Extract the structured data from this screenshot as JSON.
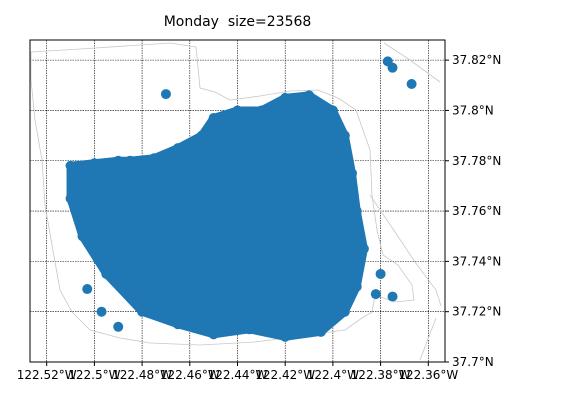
{
  "chart_data": {
    "type": "scatter",
    "title": "Monday  size=23568",
    "xlabel": "",
    "ylabel": "",
    "xlim": [
      -122.527,
      -122.353
    ],
    "ylim": [
      37.7,
      37.828
    ],
    "x_ticks": [
      -122.52,
      -122.5,
      -122.48,
      -122.46,
      -122.44,
      -122.42,
      -122.4,
      -122.38,
      -122.36
    ],
    "x_tick_labels": [
      "122.52°W",
      "122.5°W",
      "122.48°W",
      "122.46°W",
      "122.44°W",
      "122.42°W",
      "122.4°W",
      "122.38°W",
      "122.36°W"
    ],
    "y_ticks": [
      37.7,
      37.72,
      37.74,
      37.76,
      37.78,
      37.8,
      37.82
    ],
    "y_tick_labels": [
      "37.7°N",
      "37.72°N",
      "37.74°N",
      "37.76°N",
      "37.78°N",
      "37.8°N",
      "37.82°N"
    ],
    "y_axis_position": "right",
    "grid": true,
    "series_color": "#1f77b4",
    "series": [
      {
        "values_description_points": [
          [
            -122.485,
            37.78
          ],
          [
            -122.475,
            37.781
          ],
          [
            -122.465,
            37.785
          ],
          [
            -122.455,
            37.79
          ],
          [
            -122.45,
            37.797
          ],
          [
            -122.44,
            37.8
          ],
          [
            -122.43,
            37.8
          ],
          [
            -122.42,
            37.805
          ],
          [
            -122.41,
            37.806
          ],
          [
            -122.4,
            37.8
          ],
          [
            -122.395,
            37.79
          ],
          [
            -122.392,
            37.775
          ],
          [
            -122.39,
            37.76
          ],
          [
            -122.387,
            37.745
          ],
          [
            -122.39,
            37.73
          ],
          [
            -122.395,
            37.72
          ],
          [
            -122.405,
            37.712
          ],
          [
            -122.42,
            37.71
          ],
          [
            -122.435,
            37.713
          ],
          [
            -122.45,
            37.711
          ],
          [
            -122.465,
            37.715
          ],
          [
            -122.48,
            37.72
          ],
          [
            -122.495,
            37.735
          ],
          [
            -122.505,
            37.75
          ],
          [
            -122.51,
            37.765
          ],
          [
            -122.51,
            37.778
          ],
          [
            -122.5,
            37.779
          ],
          [
            -122.49,
            37.78
          ],
          [
            -122.47,
            37.76
          ],
          [
            -122.45,
            37.75
          ],
          [
            -122.43,
            37.76
          ],
          [
            -122.41,
            37.77
          ],
          [
            -122.42,
            37.74
          ],
          [
            -122.44,
            37.73
          ],
          [
            -122.46,
            37.735
          ],
          [
            -122.48,
            37.745
          ],
          [
            -122.47,
            37.8065
          ],
          [
            -122.377,
            37.8195
          ],
          [
            -122.375,
            37.817
          ],
          [
            -122.367,
            37.8105
          ],
          [
            -122.49,
            37.714
          ],
          [
            -122.497,
            37.72
          ],
          [
            -122.503,
            37.729
          ],
          [
            -122.382,
            37.727
          ],
          [
            -122.375,
            37.726
          ],
          [
            -122.38,
            37.735
          ]
        ]
      }
    ]
  }
}
